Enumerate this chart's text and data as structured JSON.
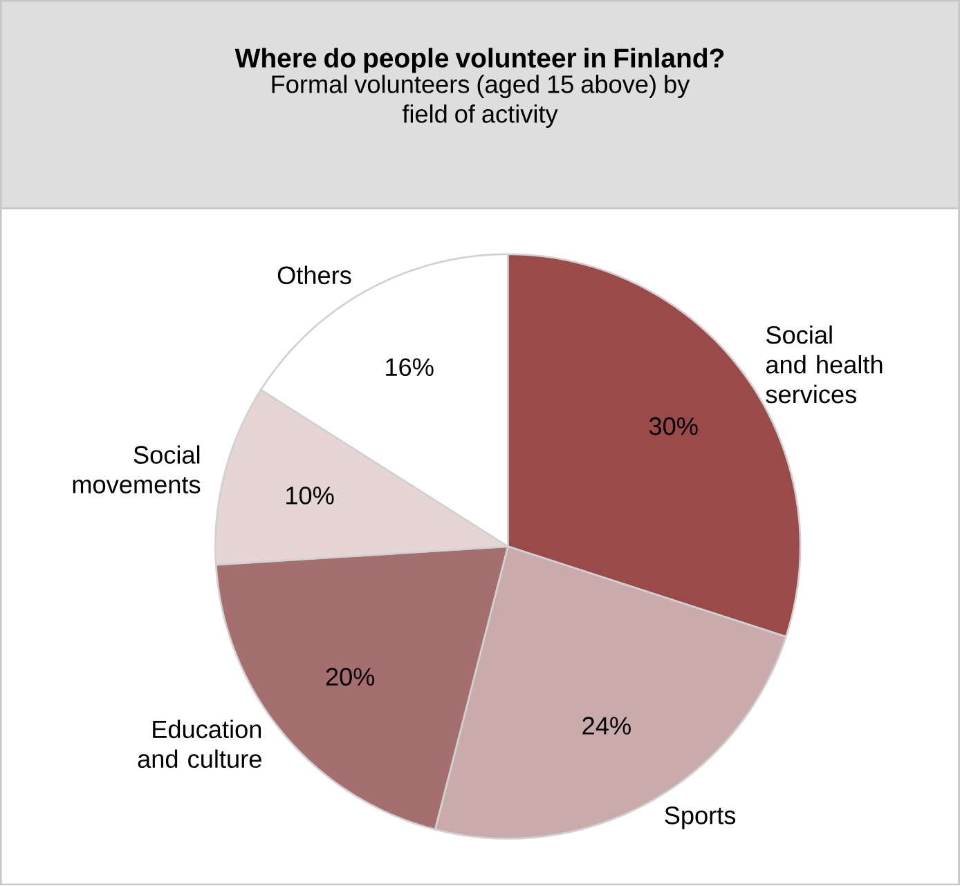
{
  "chart_data": {
    "type": "pie",
    "title": "Where do people volunteer in Finland?",
    "subtitle": "Formal volunteers (aged 15 above) by field of activity",
    "categories": [
      "Social and health services",
      "Sports",
      "Education and  culture",
      "Social movements",
      "Others"
    ],
    "values": [
      30,
      24,
      20,
      10,
      16
    ],
    "value_labels": [
      "30%",
      "24%",
      "20%",
      "10%",
      "16%"
    ],
    "colors": [
      "#9b4a4a",
      "#c9abab",
      "#a56f6f",
      "#e6d5d5",
      "#ffffff"
    ]
  }
}
